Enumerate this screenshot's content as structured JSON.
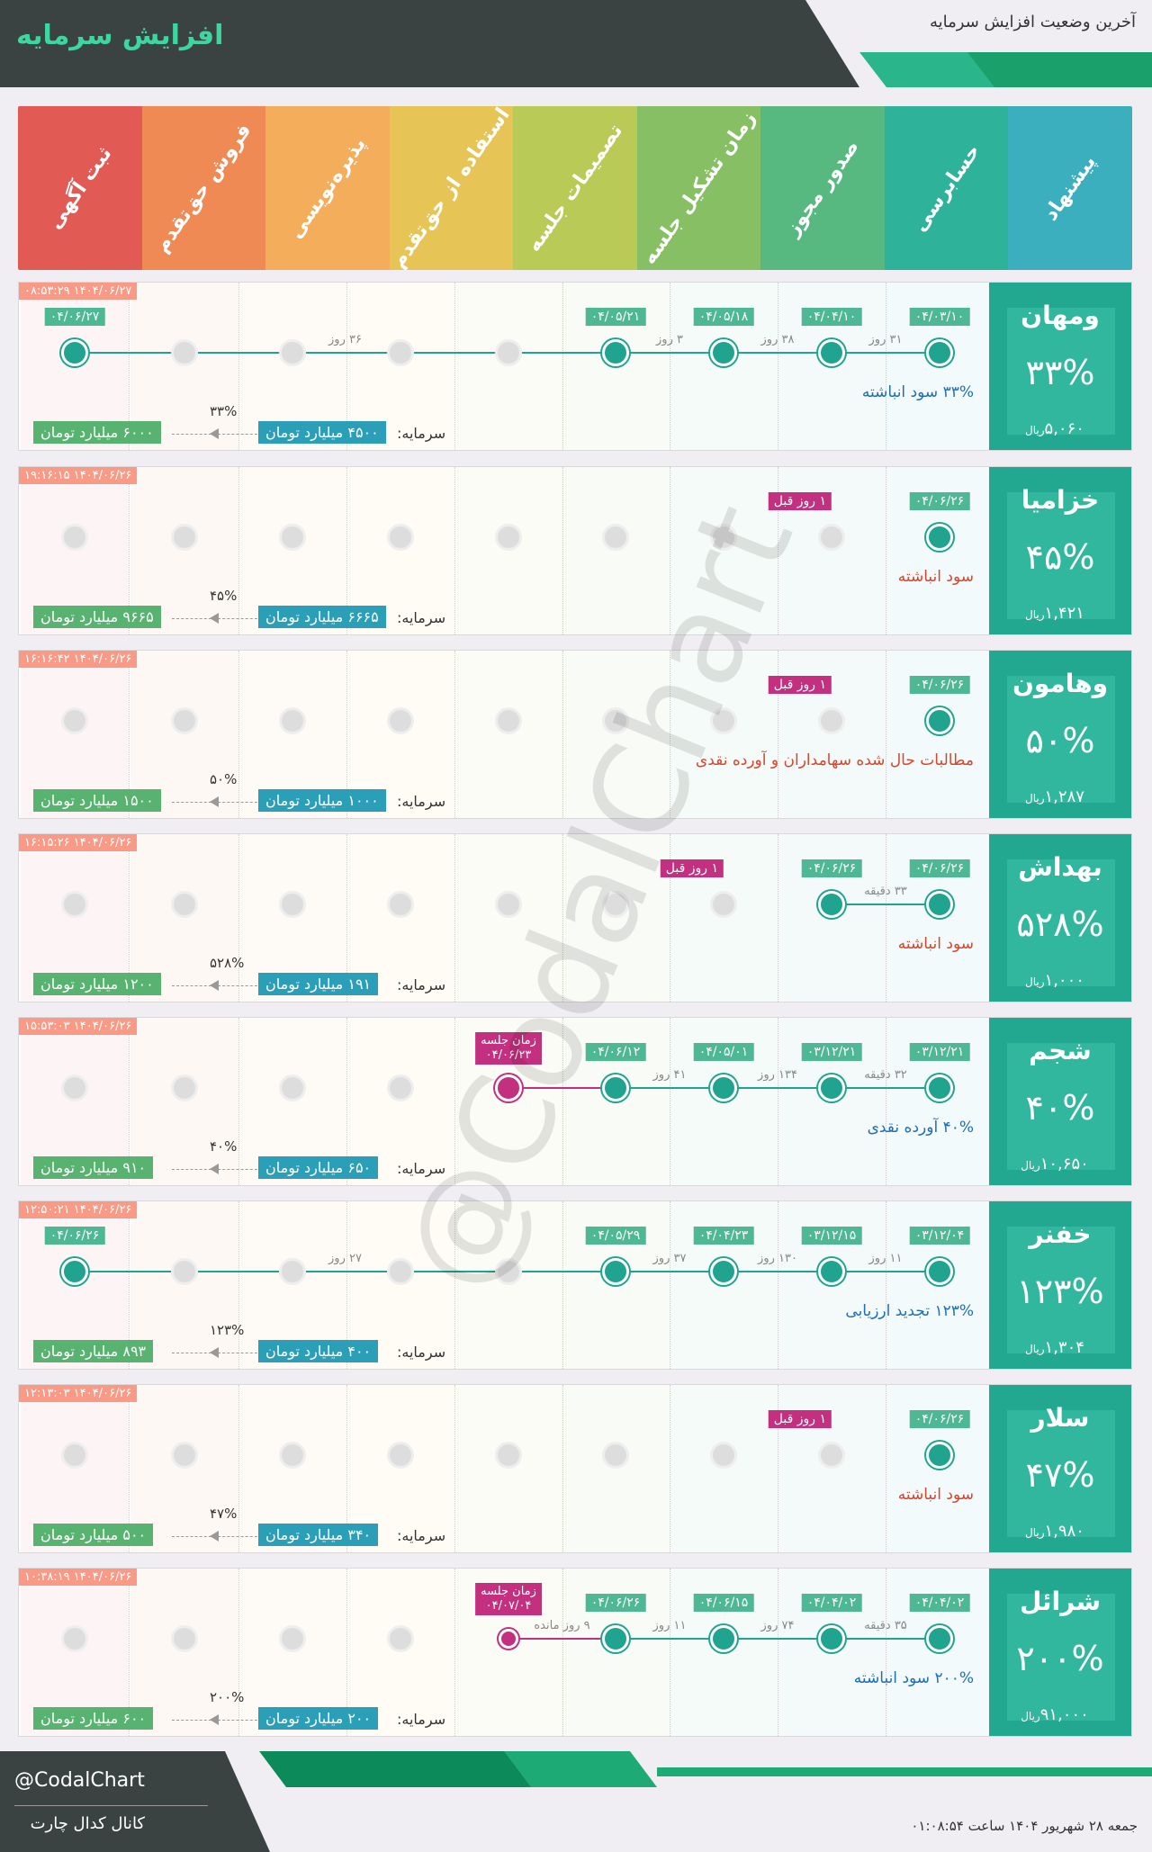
{
  "page": {
    "title": "افزایش سرمایه",
    "subtitle": "آخرین وضعیت افزایش سرمایه",
    "colors": {
      "accent": "#22a790",
      "dark": "#3b4342",
      "green": "#19a06b"
    }
  },
  "stages": [
    {
      "label": "پیشنهاد",
      "color": "#3bafbd"
    },
    {
      "label": "حسابرسی",
      "color": "#2eb29a"
    },
    {
      "label": "صدور مجوز",
      "color": "#57b980"
    },
    {
      "label": "زمان تشکیل جلسه",
      "color": "#86bf64"
    },
    {
      "label": "تصمیمات جلسه",
      "color": "#b9ca57"
    },
    {
      "label": "استفاده از حق‌تقدم",
      "color": "#e6c556"
    },
    {
      "label": "پذیره‌نویسی",
      "color": "#f3ad5b"
    },
    {
      "label": "فروش حق‌تقدم",
      "color": "#ef8a55"
    },
    {
      "label": "ثبت آگهی",
      "color": "#e15a53"
    }
  ],
  "cards": [
    {
      "name": "ومهان",
      "pct": "۳۳%",
      "price": "۵,۰۶۰",
      "currency": "ریال",
      "timestamp": "۱۴۰۴/۰۶/۲۷ ۰۸:۵۳:۲۹",
      "desc": "۳۳% سود انباشته",
      "capital_label": "سرمایه:",
      "capital_old": "۴۵۰۰ میلیارد تومان",
      "capital_new": "۶۰۰۰ میلیارد تومان",
      "growth": "۳۳%",
      "dates": [
        "۰۴/۰۳/۱۰",
        "۰۴/۰۴/۱۰",
        "۰۴/۰۵/۱۸",
        "۰۴/۰۵/۲۱",
        "۰۴/۰۶/۲۷"
      ],
      "gaps": [
        "۳۱ روز",
        "۳۸ روز",
        "۳ روز",
        "۳۶ روز"
      ]
    },
    {
      "name": "خزامیا",
      "pct": "۴۵%",
      "price": "۱,۴۲۱",
      "currency": "ریال",
      "timestamp": "۱۴۰۴/۰۶/۲۶ ۱۹:۱۶:۱۵",
      "desc": "سود انباشته",
      "capital_label": "سرمایه:",
      "capital_old": "۶۶۶۵ میلیارد تومان",
      "capital_new": "۹۶۶۵ میلیارد تومان",
      "growth": "۴۵%",
      "dates": [
        "۰۴/۰۶/۲۶"
      ],
      "ago": "۱ روز قبل"
    },
    {
      "name": "وهامون",
      "pct": "۵۰%",
      "price": "۱,۲۸۷",
      "currency": "ریال",
      "timestamp": "۱۴۰۴/۰۶/۲۶ ۱۶:۱۶:۴۲",
      "desc": "مطالبات حال شده سهامداران و آورده نقدی",
      "capital_label": "سرمایه:",
      "capital_old": "۱۰۰۰ میلیارد تومان",
      "capital_new": "۱۵۰۰ میلیارد تومان",
      "growth": "۵۰%",
      "dates": [
        "۰۴/۰۶/۲۶"
      ],
      "ago": "۱ روز قبل"
    },
    {
      "name": "بهداش",
      "pct": "۵۲۸%",
      "price": "۱,۰۰۰",
      "currency": "ریال",
      "timestamp": "۱۴۰۴/۰۶/۲۶ ۱۶:۱۵:۲۶",
      "desc": "سود انباشته",
      "capital_label": "سرمایه:",
      "capital_old": "۱۹۱ میلیارد تومان",
      "capital_new": "۱۲۰۰ میلیارد تومان",
      "growth": "۵۲۸%",
      "dates": [
        "۰۴/۰۶/۲۶",
        "۰۴/۰۶/۲۶"
      ],
      "gaps": [
        "۳۳ دقیقه"
      ],
      "ago": "۱ روز قبل"
    },
    {
      "name": "شجم",
      "pct": "۴۰%",
      "price": "۱۰,۶۵۰",
      "currency": "ریال",
      "timestamp": "۱۴۰۴/۰۶/۲۶ ۱۵:۵۳:۰۳",
      "desc": "۴۰% آورده نقدی",
      "capital_label": "سرمایه:",
      "capital_old": "۶۵۰ میلیارد تومان",
      "capital_new": "۹۱۰ میلیارد تومان",
      "growth": "۴۰%",
      "dates": [
        "۰۳/۱۲/۲۱",
        "۰۳/۱۲/۲۱",
        "۰۴/۰۵/۰۱",
        "۰۴/۰۶/۱۲"
      ],
      "gaps": [
        "۳۲ دقیقه",
        "۱۳۴ روز",
        "۴۱ روز"
      ],
      "meeting_label": "زمان جلسه",
      "meeting_date": "۰۴/۰۶/۲۳"
    },
    {
      "name": "خفنر",
      "pct": "۱۲۳%",
      "price": "۱,۳۰۴",
      "currency": "ریال",
      "timestamp": "۱۴۰۴/۰۶/۲۶ ۱۲:۵۰:۲۱",
      "desc": "۱۲۳% تجدید ارزیابی",
      "capital_label": "سرمایه:",
      "capital_old": "۴۰۰ میلیارد تومان",
      "capital_new": "۸۹۳ میلیارد تومان",
      "growth": "۱۲۳%",
      "dates": [
        "۰۳/۱۲/۰۴",
        "۰۳/۱۲/۱۵",
        "۰۴/۰۴/۲۳",
        "۰۴/۰۵/۲۹",
        "۰۴/۰۶/۲۶"
      ],
      "gaps": [
        "۱۱ روز",
        "۱۳۰ روز",
        "۳۷ روز",
        "۲۷ روز"
      ]
    },
    {
      "name": "سلار",
      "pct": "۴۷%",
      "price": "۱,۹۸۰",
      "currency": "ریال",
      "timestamp": "۱۴۰۴/۰۶/۲۶ ۱۲:۱۳:۰۳",
      "desc": "سود انباشته",
      "capital_label": "سرمایه:",
      "capital_old": "۳۴۰ میلیارد تومان",
      "capital_new": "۵۰۰ میلیارد تومان",
      "growth": "۴۷%",
      "dates": [
        "۰۴/۰۶/۲۶"
      ],
      "ago": "۱ روز قبل"
    },
    {
      "name": "شرائل",
      "pct": "۲۰۰%",
      "price": "۹۱,۰۰۰",
      "currency": "ریال",
      "timestamp": "۱۴۰۴/۰۶/۲۶ ۱۰:۳۸:۱۹",
      "desc": "۲۰۰% سود انباشته",
      "capital_label": "سرمایه:",
      "capital_old": "۲۰۰ میلیارد تومان",
      "capital_new": "۶۰۰ میلیارد تومان",
      "growth": "۲۰۰%",
      "dates": [
        "۰۴/۰۴/۰۲",
        "۰۴/۰۴/۰۲",
        "۰۴/۰۶/۱۵",
        "۰۴/۰۶/۲۶"
      ],
      "gaps": [
        "۳۵ دقیقه",
        "۷۴ روز",
        "۱۱ روز",
        "۹ روز مانده"
      ],
      "meeting_label": "زمان جلسه",
      "meeting_date": "۰۴/۰۷/۰۴"
    }
  ],
  "watermark": "@CodalChart",
  "footer": {
    "handle": "@CodalChart",
    "channel": "کانال کدال چارت",
    "date": "جمعه ۲۸ شهریور ۱۴۰۴ ساعت ۰۱:۰۸:۵۴"
  }
}
